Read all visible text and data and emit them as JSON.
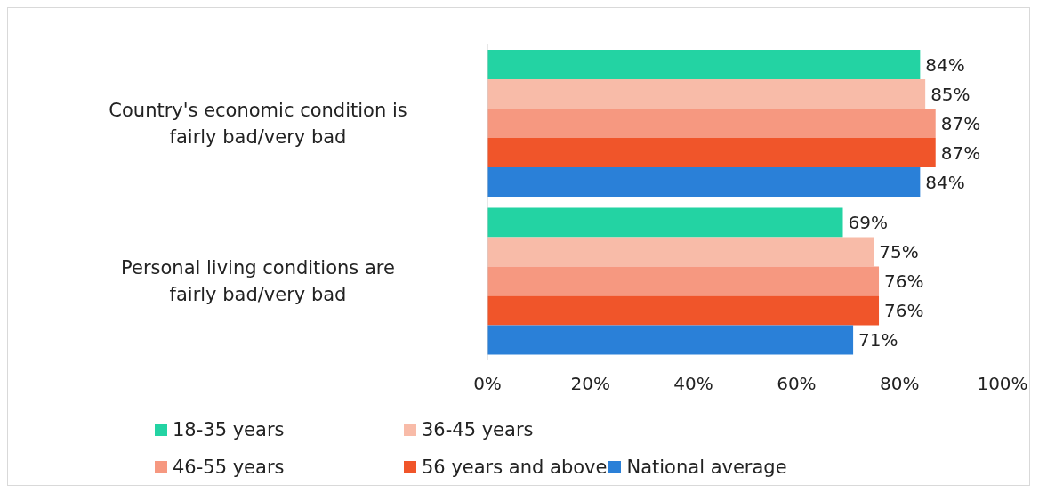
{
  "chart_data": {
    "type": "bar",
    "orientation": "horizontal",
    "categories": [
      "Country's economic condition is fairly bad/very bad",
      "Personal living conditions are fairly bad/very bad"
    ],
    "series": [
      {
        "name": "18-35 years",
        "color": "#23d3a3",
        "values": [
          84,
          69
        ],
        "value_labels": [
          "84%",
          "69%"
        ]
      },
      {
        "name": "36-45 years",
        "color": "#f8bba8",
        "values": [
          85,
          75
        ],
        "value_labels": [
          "85%",
          "75%"
        ]
      },
      {
        "name": "46-55 years",
        "color": "#f69880",
        "values": [
          87,
          76
        ],
        "value_labels": [
          "87%",
          "76%"
        ]
      },
      {
        "name": "56 years and above",
        "color": "#f0552a",
        "values": [
          87,
          76
        ],
        "value_labels": [
          "87%",
          "76%"
        ]
      },
      {
        "name": "National average",
        "color": "#2a80d8",
        "values": [
          84,
          71
        ],
        "value_labels": [
          "84%",
          "71%"
        ]
      }
    ],
    "xlim": [
      0,
      100
    ],
    "xticks": [
      {
        "value": 0,
        "label": "0%"
      },
      {
        "value": 20,
        "label": "20%"
      },
      {
        "value": 40,
        "label": "40%"
      },
      {
        "value": 60,
        "label": "60%"
      },
      {
        "value": 80,
        "label": "80%"
      },
      {
        "value": 100,
        "label": "100%"
      }
    ],
    "grid": false,
    "legend": "bottom"
  }
}
